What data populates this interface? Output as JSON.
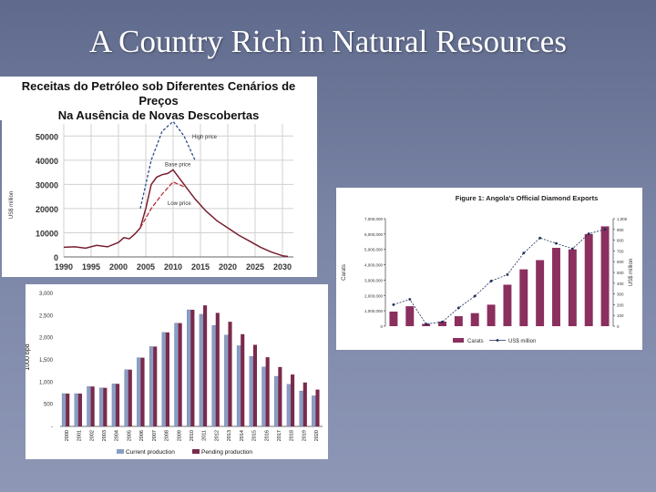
{
  "slide": {
    "title": "A Country Rich in Natural Resources"
  },
  "oil_caption": {
    "line1": "Receitas do Petróleo sob Diferentes Cenários de",
    "line2": "Preços",
    "line3": "Na Ausência de Novas Descobertas"
  },
  "chart_data": [
    {
      "id": "oil_revenue",
      "type": "line",
      "ylabel": "US$ million",
      "xlabel": "",
      "xlim": [
        1990,
        2032
      ],
      "ylim": [
        0,
        55000
      ],
      "x_ticks": [
        1990,
        1995,
        2000,
        2005,
        2010,
        2015,
        2020,
        2025,
        2030
      ],
      "y_ticks": [
        0,
        10000,
        20000,
        30000,
        40000,
        50000
      ],
      "grid": true,
      "annotations": [
        "High price",
        "Base price",
        "Low price"
      ],
      "series": [
        {
          "name": "High price",
          "x": [
            2004,
            2006,
            2008,
            2010,
            2012,
            2014
          ],
          "y": [
            20000,
            40000,
            52000,
            56000,
            50000,
            40000
          ]
        },
        {
          "name": "Base price",
          "x": [
            1990,
            1992,
            1994,
            1996,
            1998,
            2000,
            2001,
            2002,
            2003,
            2004,
            2005,
            2006,
            2007,
            2008,
            2009,
            2010,
            2011,
            2012,
            2014,
            2016,
            2018,
            2020,
            2022,
            2024,
            2026,
            2028,
            2030,
            2031
          ],
          "y": [
            4000,
            4200,
            3600,
            4800,
            4200,
            6000,
            8000,
            7500,
            9500,
            12000,
            20000,
            30000,
            33000,
            34000,
            34500,
            36000,
            33000,
            30000,
            24000,
            19000,
            15000,
            12000,
            9000,
            6500,
            4000,
            2000,
            500,
            200
          ]
        },
        {
          "name": "Low price",
          "x": [
            2004,
            2006,
            2008,
            2010,
            2012
          ],
          "y": [
            12000,
            20000,
            26000,
            31000,
            29000
          ]
        }
      ]
    },
    {
      "id": "diamond_exports",
      "type": "bar",
      "title": "Figure 1: Angola's Official Diamond Exports",
      "ylabel": "Carats",
      "y2label": "US$ million",
      "ylim": [
        0,
        7000000
      ],
      "y2lim": [
        0,
        1000
      ],
      "y_ticks": [
        0,
        1000000,
        2000000,
        3000000,
        4000000,
        5000000,
        6000000,
        7000000
      ],
      "y_tick_labels": [
        "0",
        "1,000,000",
        "2,000,000",
        "3,000,000",
        "4,000,000",
        "5,000,000",
        "6,000,000",
        "7,000,000"
      ],
      "y2_ticks": [
        0,
        100,
        200,
        300,
        400,
        500,
        600,
        700,
        800,
        900,
        1000
      ],
      "y2_tick_labels": [
        "0",
        "100",
        "200",
        "300",
        "400",
        "500",
        "600",
        "700",
        "800",
        "900",
        "1,000"
      ],
      "legend": [
        "Carats",
        "US$ million"
      ],
      "legend_position": "bottom",
      "series": [
        {
          "name": "Carats",
          "kind": "bar",
          "values": [
            950000,
            1300000,
            150000,
            300000,
            650000,
            850000,
            1400000,
            2700000,
            3700000,
            4300000,
            5100000,
            5000000,
            6000000,
            6500000
          ]
        },
        {
          "name": "US$ million",
          "kind": "line",
          "values": [
            200,
            250,
            20,
            40,
            170,
            280,
            420,
            480,
            680,
            820,
            770,
            720,
            860,
            900
          ]
        }
      ]
    },
    {
      "id": "oil_production",
      "type": "bar",
      "ylabel": "1000 bpd",
      "ylim": [
        0,
        3000
      ],
      "y_ticks": [
        0,
        500,
        1000,
        1500,
        2000,
        2500,
        3000
      ],
      "y_tick_labels": [
        "-",
        "500",
        "1,000",
        "1,500",
        "2,000",
        "2,500",
        "3,000"
      ],
      "categories": [
        "2000",
        "2001",
        "2002",
        "2003",
        "2004",
        "2005",
        "2006",
        "2007",
        "2008",
        "2009",
        "2010",
        "2011",
        "2012",
        "2013",
        "2014",
        "2015",
        "2016",
        "2017",
        "2018",
        "2019",
        "2020"
      ],
      "legend": [
        "Current production",
        "Pending production"
      ],
      "legend_position": "bottom",
      "series": [
        {
          "name": "Current production",
          "values": [
            740,
            740,
            900,
            870,
            960,
            1280,
            1550,
            1800,
            2120,
            2330,
            2630,
            2530,
            2280,
            2060,
            1820,
            1580,
            1340,
            1130,
            950,
            800,
            690
          ]
        },
        {
          "name": "Pending production",
          "values": [
            740,
            740,
            900,
            870,
            960,
            1280,
            1550,
            1800,
            2120,
            2330,
            2630,
            2730,
            2560,
            2360,
            2080,
            1840,
            1560,
            1340,
            1170,
            990,
            830
          ]
        }
      ]
    }
  ],
  "colors": {
    "high": "#2e4a8a",
    "base": "#7a1e30",
    "low": "#b4232e",
    "carats": "#8a2f5e",
    "usd": "#1d2d5a",
    "current": "#8a9ec4",
    "pending": "#7a2a4c"
  }
}
